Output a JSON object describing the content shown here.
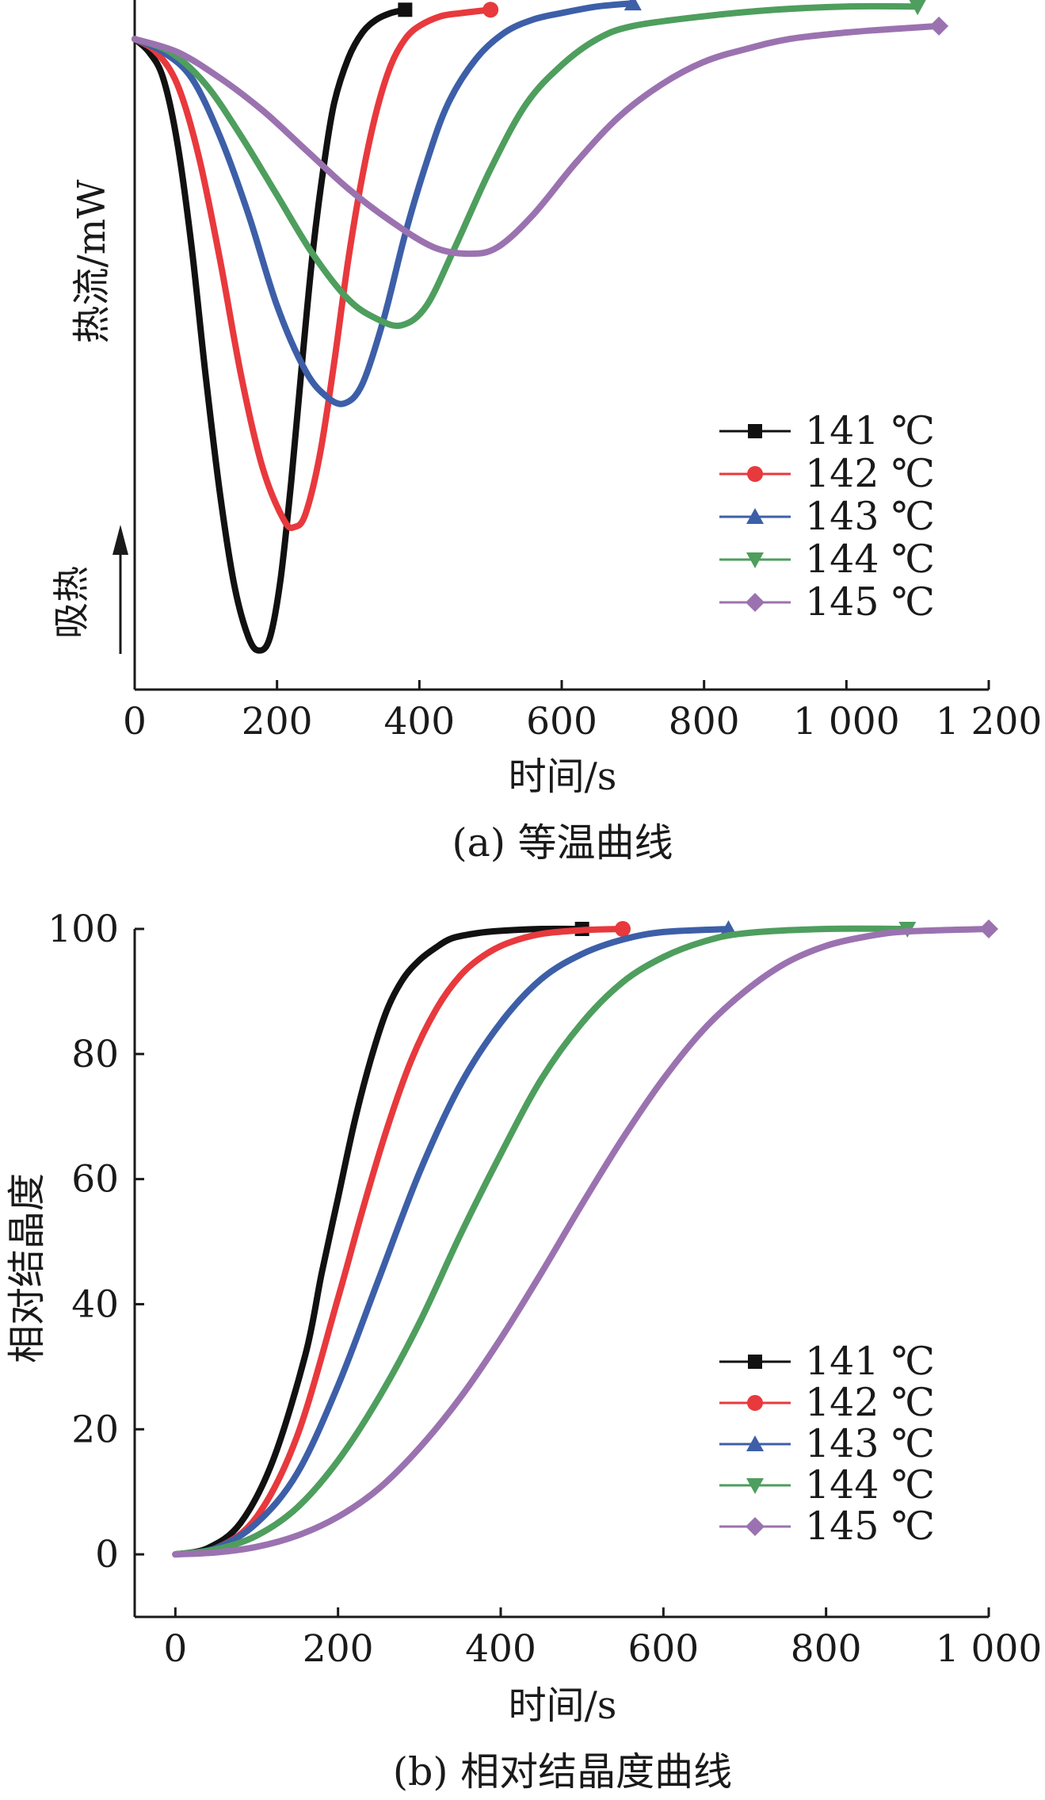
{
  "chart_data": [
    {
      "type": "line",
      "title": "",
      "caption": "(a) 等温曲线",
      "xlabel": "时间/s",
      "ylabel": "热流/mW",
      "annotation": "吸热",
      "xlim": [
        0,
        1200
      ],
      "x_ticks": [
        "0",
        "200",
        "400",
        "600",
        "800",
        "1 000",
        "1 200"
      ],
      "y_ticks": [],
      "y_unit_note": "relative heat flow, exotherm downward (y = baseline 0, deeper = more negative)",
      "ylim": [
        -1.0,
        0.06
      ],
      "legend": "right",
      "series": [
        {
          "name": "141 ℃",
          "color": "#111111",
          "marker": "square",
          "x": [
            0,
            20,
            40,
            60,
            80,
            100,
            120,
            140,
            160,
            175,
            190,
            205,
            220,
            235,
            250,
            265,
            280,
            300,
            320,
            340,
            360,
            380
          ],
          "y": [
            0,
            -0.02,
            -0.06,
            -0.16,
            -0.32,
            -0.52,
            -0.7,
            -0.84,
            -0.92,
            -0.94,
            -0.92,
            -0.83,
            -0.68,
            -0.5,
            -0.33,
            -0.2,
            -0.1,
            -0.03,
            0.01,
            0.03,
            0.04,
            0.045
          ]
        },
        {
          "name": "142 ℃",
          "color": "#e8393d",
          "marker": "circle",
          "x": [
            0,
            30,
            60,
            90,
            120,
            150,
            180,
            210,
            225,
            240,
            260,
            280,
            300,
            320,
            340,
            360,
            380,
            400,
            430,
            460,
            500
          ],
          "y": [
            0,
            -0.02,
            -0.07,
            -0.18,
            -0.34,
            -0.52,
            -0.66,
            -0.74,
            -0.75,
            -0.73,
            -0.64,
            -0.5,
            -0.34,
            -0.21,
            -0.11,
            -0.04,
            0.0,
            0.02,
            0.035,
            0.04,
            0.045
          ]
        },
        {
          "name": "143 ℃",
          "color": "#3d5fa8",
          "marker": "triangle",
          "x": [
            0,
            40,
            80,
            120,
            160,
            200,
            240,
            270,
            295,
            320,
            350,
            380,
            410,
            440,
            480,
            520,
            560,
            600,
            650,
            700
          ],
          "y": [
            0,
            -0.02,
            -0.06,
            -0.15,
            -0.27,
            -0.41,
            -0.51,
            -0.55,
            -0.56,
            -0.53,
            -0.43,
            -0.3,
            -0.19,
            -0.1,
            -0.03,
            0.01,
            0.03,
            0.04,
            0.05,
            0.055
          ]
        },
        {
          "name": "144 ℃",
          "color": "#4e9e5e",
          "marker": "triangle-down",
          "x": [
            0,
            50,
            100,
            150,
            200,
            250,
            300,
            340,
            375,
            410,
            450,
            500,
            550,
            600,
            650,
            700,
            800,
            900,
            1000,
            1100
          ],
          "y": [
            0,
            -0.02,
            -0.07,
            -0.15,
            -0.24,
            -0.33,
            -0.4,
            -0.43,
            -0.44,
            -0.41,
            -0.32,
            -0.2,
            -0.1,
            -0.04,
            0.0,
            0.02,
            0.035,
            0.045,
            0.05,
            0.05
          ]
        },
        {
          "name": "145 ℃",
          "color": "#9b72b0",
          "marker": "diamond",
          "x": [
            0,
            60,
            120,
            180,
            240,
            300,
            360,
            420,
            470,
            510,
            560,
            620,
            680,
            740,
            800,
            860,
            920,
            1000,
            1060,
            1130
          ],
          "y": [
            0,
            -0.02,
            -0.06,
            -0.11,
            -0.17,
            -0.23,
            -0.28,
            -0.32,
            -0.33,
            -0.32,
            -0.27,
            -0.19,
            -0.12,
            -0.07,
            -0.035,
            -0.015,
            0.0,
            0.01,
            0.015,
            0.02
          ]
        }
      ]
    },
    {
      "type": "line",
      "title": "",
      "caption": "(b) 相对结晶度曲线",
      "xlabel": "时间/s",
      "ylabel": "相对结晶度",
      "xlim": [
        -50,
        1000
      ],
      "ylim": [
        -10,
        100
      ],
      "x_ticks": [
        "0",
        "200",
        "400",
        "600",
        "800",
        "1 000"
      ],
      "y_ticks": [
        "0",
        "20",
        "40",
        "60",
        "80",
        "100"
      ],
      "legend": "right",
      "series": [
        {
          "name": "141  ℃",
          "color": "#111111",
          "marker": "square",
          "x": [
            0,
            40,
            80,
            120,
            160,
            180,
            200,
            220,
            240,
            260,
            280,
            300,
            320,
            340,
            370,
            400,
            450,
            500
          ],
          "y": [
            0,
            1,
            5,
            15,
            32,
            45,
            57,
            69,
            79,
            87,
            92,
            95,
            97,
            98.5,
            99.3,
            99.7,
            100,
            100
          ]
        },
        {
          "name": "142  ℃",
          "color": "#e8393d",
          "marker": "circle",
          "x": [
            0,
            50,
            100,
            150,
            200,
            230,
            260,
            290,
            320,
            350,
            380,
            410,
            450,
            500,
            550
          ],
          "y": [
            0,
            1,
            6,
            19,
            41,
            55,
            68,
            79,
            87,
            92.5,
            95.8,
            97.8,
            99.2,
            99.8,
            100
          ]
        },
        {
          "name": "143  ℃",
          "color": "#3d5fa8",
          "marker": "triangle",
          "x": [
            0,
            50,
            100,
            150,
            200,
            250,
            300,
            350,
            400,
            450,
            500,
            550,
            600,
            680
          ],
          "y": [
            0,
            1,
            5,
            13,
            27,
            44,
            61,
            75,
            85,
            92,
            96,
            98.3,
            99.5,
            100
          ]
        },
        {
          "name": "144  ℃",
          "color": "#4e9e5e",
          "marker": "triangle-down",
          "x": [
            0,
            50,
            100,
            150,
            200,
            250,
            300,
            350,
            400,
            450,
            500,
            550,
            600,
            650,
            700,
            800,
            900
          ],
          "y": [
            0,
            0.8,
            3,
            7.5,
            15,
            25,
            37,
            51,
            64,
            76,
            85,
            91.5,
            95.5,
            98,
            99.3,
            100,
            100
          ]
        },
        {
          "name": "145  ℃",
          "color": "#9b72b0",
          "marker": "diamond",
          "x": [
            0,
            50,
            100,
            150,
            200,
            250,
            300,
            350,
            400,
            450,
            500,
            550,
            600,
            650,
            700,
            750,
            800,
            850,
            900,
            1000
          ],
          "y": [
            0,
            0.3,
            1.2,
            3,
            6,
            10.5,
            17,
            25,
            34.5,
            45,
            56,
            66.5,
            76,
            84,
            90,
            94.5,
            97.3,
            98.8,
            99.6,
            100
          ]
        }
      ]
    }
  ]
}
